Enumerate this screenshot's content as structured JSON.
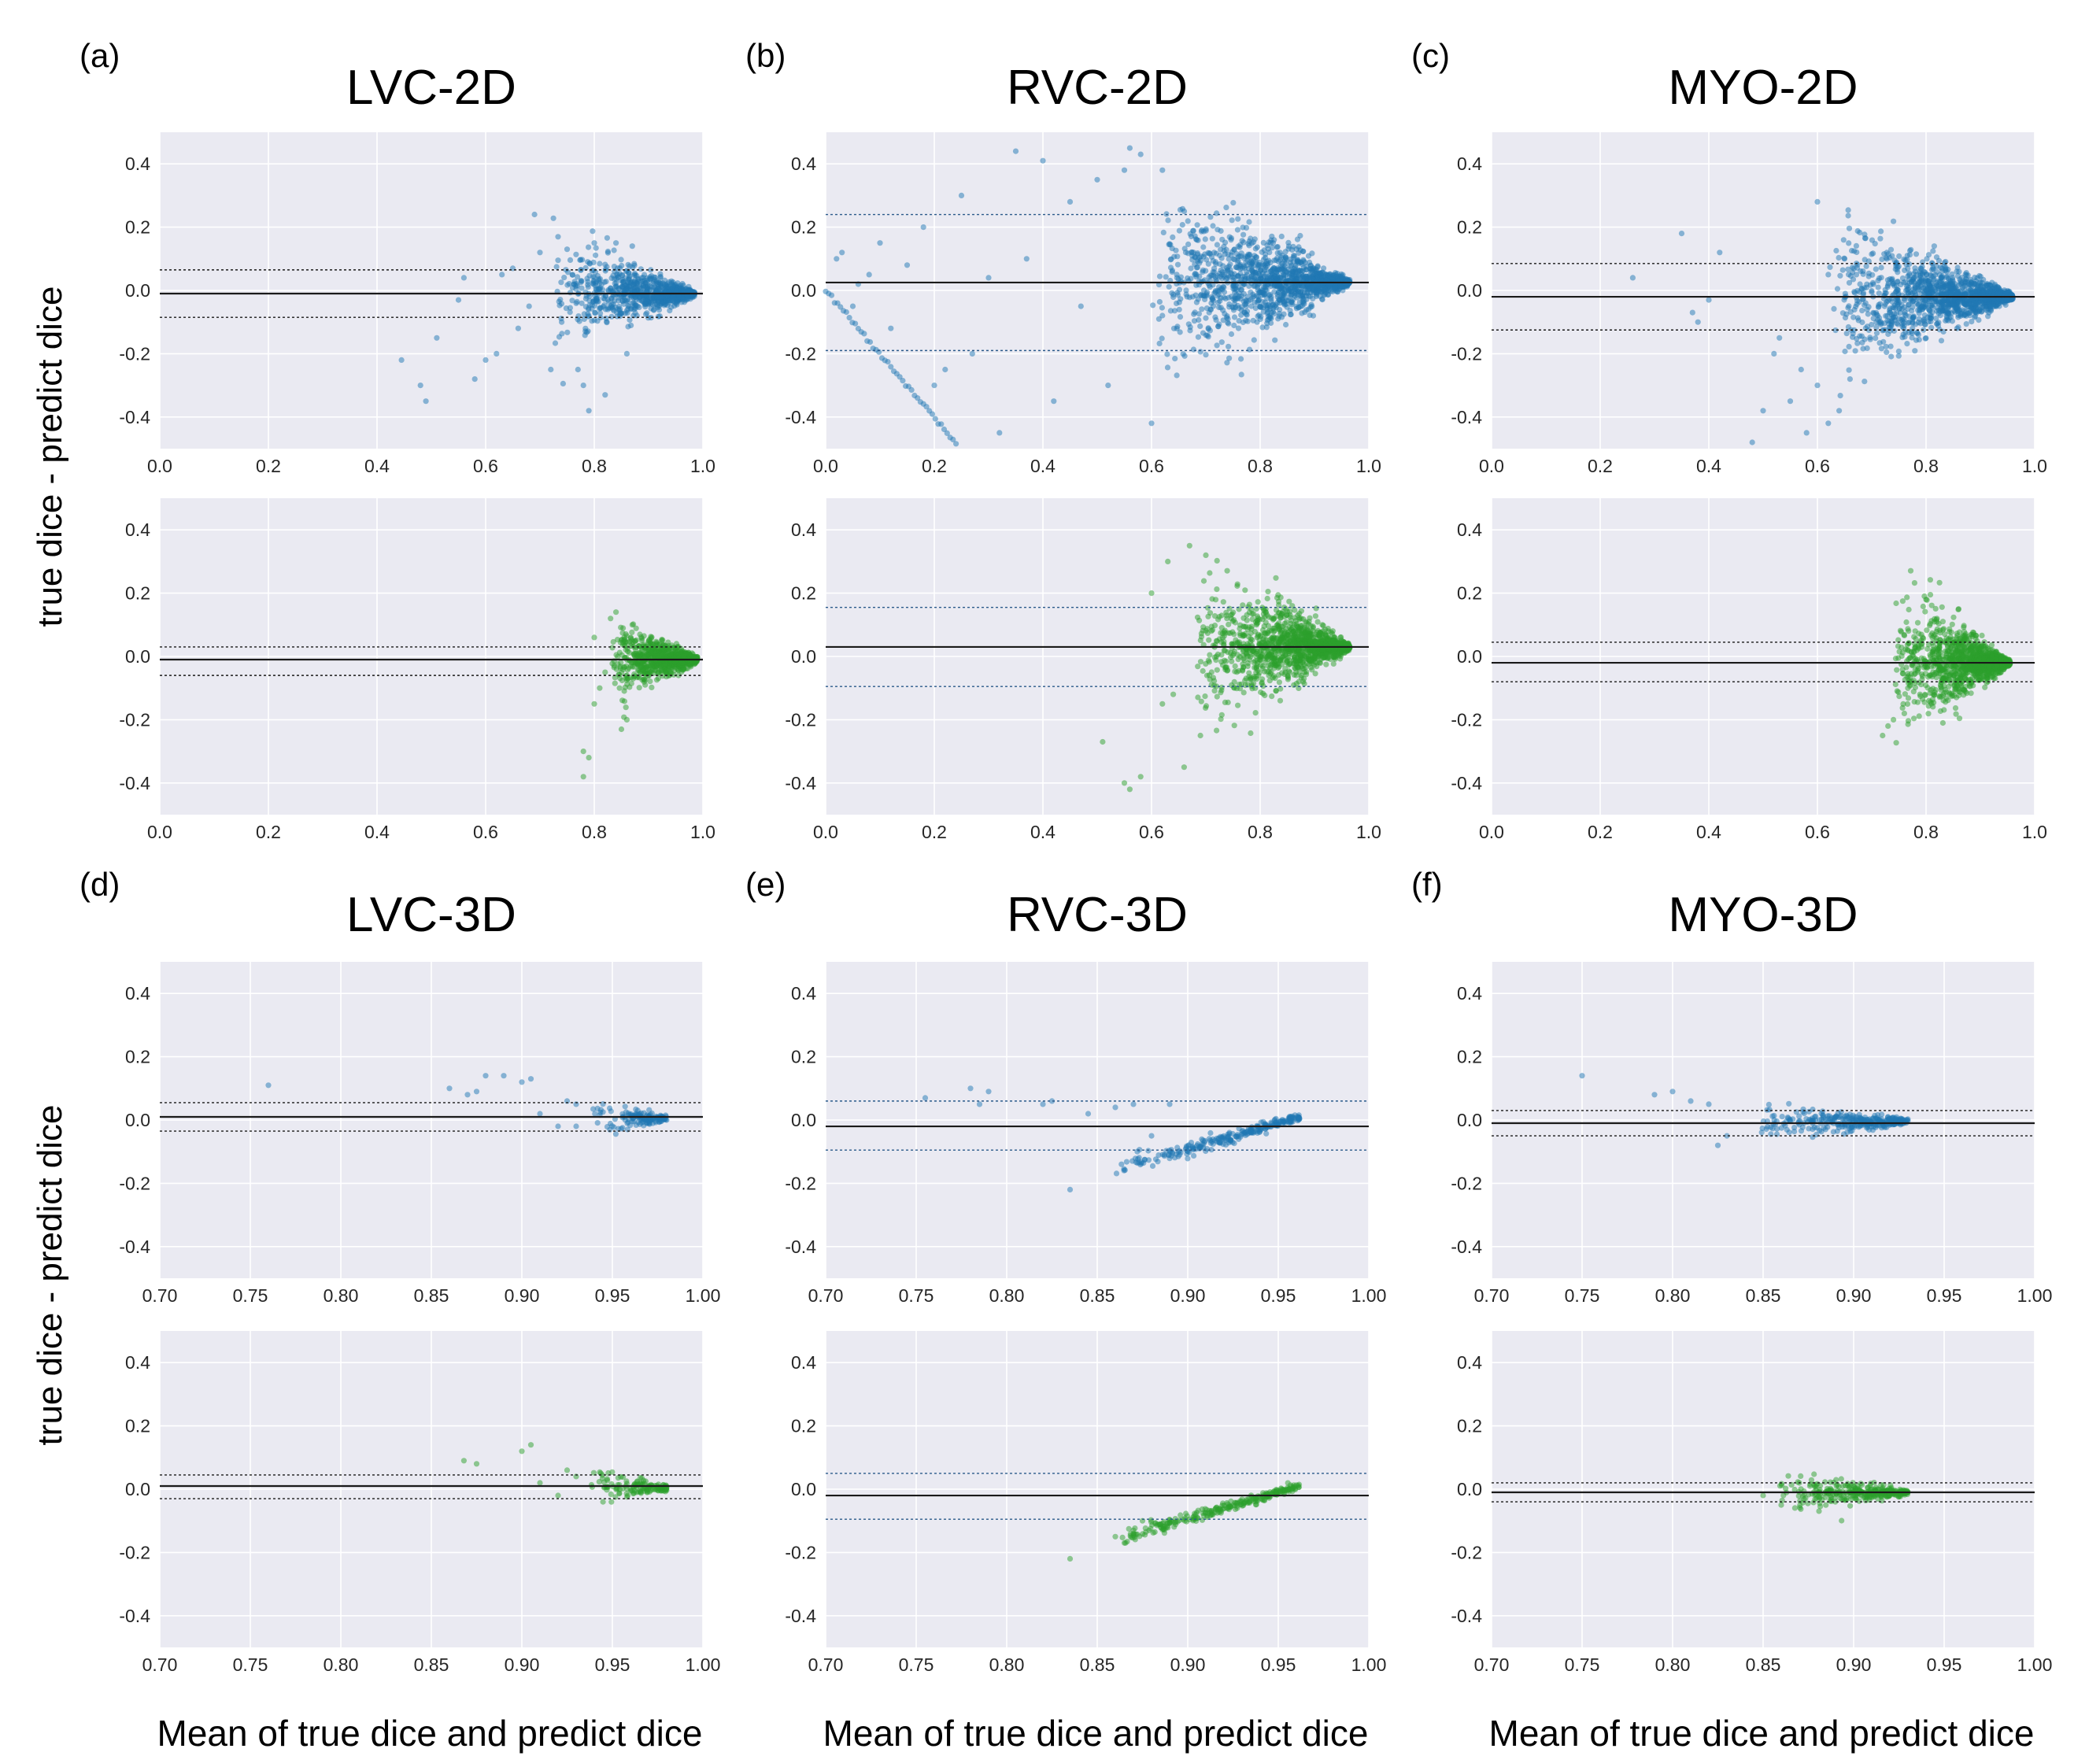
{
  "figure": {
    "y_axis_label": "true dice - predict dice",
    "x_axis_label": "Mean of true dice and predict dice"
  },
  "colors": {
    "blue": "#1f77b4",
    "green": "#2ca02c",
    "background": "#eaeaf2"
  },
  "chart_data": [
    {
      "id": "a",
      "panel_label": "(a)",
      "title": "LVC-2D",
      "type": "scatter",
      "xlim": [
        0.0,
        1.0
      ],
      "ylim": [
        -0.5,
        0.5
      ],
      "xticks": [
        "0.0",
        "0.2",
        "0.4",
        "0.6",
        "0.8",
        "1.0"
      ],
      "yticks": [
        "-0.4",
        "-0.2",
        "0.0",
        "0.2",
        "0.4"
      ],
      "subplots": [
        {
          "row": "top",
          "color": "blue",
          "mean": -0.01,
          "loa_upper": 0.065,
          "loa_lower": -0.085,
          "cluster": {
            "x_min": 0.72,
            "x_max": 0.985,
            "spread_at_min": 0.17,
            "center": -0.01,
            "n": 900
          },
          "outliers": [
            [
              0.445,
              -0.22
            ],
            [
              0.48,
              -0.3
            ],
            [
              0.49,
              -0.35
            ],
            [
              0.51,
              -0.15
            ],
            [
              0.55,
              -0.03
            ],
            [
              0.56,
              0.04
            ],
            [
              0.58,
              -0.28
            ],
            [
              0.6,
              -0.22
            ],
            [
              0.62,
              -0.2
            ],
            [
              0.63,
              0.05
            ],
            [
              0.65,
              0.07
            ],
            [
              0.66,
              -0.12
            ],
            [
              0.68,
              -0.05
            ],
            [
              0.69,
              0.24
            ],
            [
              0.7,
              0.12
            ],
            [
              0.72,
              -0.25
            ],
            [
              0.74,
              -0.1
            ],
            [
              0.75,
              0.13
            ],
            [
              0.77,
              -0.25
            ],
            [
              0.78,
              -0.3
            ],
            [
              0.79,
              -0.38
            ],
            [
              0.8,
              0.15
            ],
            [
              0.82,
              -0.33
            ],
            [
              0.84,
              0.15
            ],
            [
              0.86,
              -0.2
            ],
            [
              0.87,
              0.14
            ]
          ]
        },
        {
          "row": "bottom",
          "color": "green",
          "mean": -0.01,
          "loa_upper": 0.03,
          "loa_lower": -0.06,
          "cluster": {
            "x_min": 0.83,
            "x_max": 0.99,
            "spread_at_min": 0.12,
            "center": -0.01,
            "n": 900
          },
          "outliers": [
            [
              0.78,
              -0.3
            ],
            [
              0.78,
              -0.38
            ],
            [
              0.79,
              -0.32
            ],
            [
              0.8,
              -0.15
            ],
            [
              0.8,
              0.06
            ],
            [
              0.81,
              -0.1
            ],
            [
              0.82,
              -0.05
            ],
            [
              0.83,
              0.12
            ],
            [
              0.84,
              0.14
            ],
            [
              0.85,
              -0.23
            ],
            [
              0.86,
              -0.2
            ],
            [
              0.87,
              0.1
            ]
          ]
        }
      ]
    },
    {
      "id": "b",
      "panel_label": "(b)",
      "title": "RVC-2D",
      "type": "scatter",
      "xlim": [
        0.0,
        1.0
      ],
      "ylim": [
        -0.5,
        0.5
      ],
      "xticks": [
        "0.0",
        "0.2",
        "0.4",
        "0.6",
        "0.8",
        "1.0"
      ],
      "yticks": [
        "-0.4",
        "-0.2",
        "0.0",
        "0.2",
        "0.4"
      ],
      "subplots": [
        {
          "row": "top",
          "color": "blue",
          "mean": 0.025,
          "loa_upper": 0.24,
          "loa_lower": -0.19,
          "cluster": {
            "x_min": 0.6,
            "x_max": 0.965,
            "spread_at_min": 0.3,
            "center": 0.025,
            "n": 1400
          },
          "line_segment": {
            "x_from": 0.0,
            "x_to": 0.24,
            "slope": -2.0,
            "n": 45
          },
          "outliers": [
            [
              0.02,
              0.1
            ],
            [
              0.03,
              0.12
            ],
            [
              0.05,
              -0.05
            ],
            [
              0.06,
              0.02
            ],
            [
              0.08,
              0.05
            ],
            [
              0.1,
              0.15
            ],
            [
              0.12,
              -0.12
            ],
            [
              0.15,
              0.08
            ],
            [
              0.18,
              0.2
            ],
            [
              0.2,
              -0.3
            ],
            [
              0.22,
              -0.25
            ],
            [
              0.25,
              0.3
            ],
            [
              0.27,
              -0.2
            ],
            [
              0.3,
              0.04
            ],
            [
              0.32,
              -0.45
            ],
            [
              0.35,
              0.44
            ],
            [
              0.37,
              0.1
            ],
            [
              0.4,
              0.41
            ],
            [
              0.42,
              -0.35
            ],
            [
              0.45,
              0.28
            ],
            [
              0.47,
              -0.05
            ],
            [
              0.5,
              0.35
            ],
            [
              0.52,
              -0.3
            ],
            [
              0.55,
              0.38
            ],
            [
              0.56,
              0.45
            ],
            [
              0.58,
              0.43
            ],
            [
              0.6,
              -0.42
            ],
            [
              0.62,
              0.38
            ]
          ]
        },
        {
          "row": "bottom",
          "color": "green",
          "mean": 0.03,
          "loa_upper": 0.155,
          "loa_lower": -0.095,
          "cluster": {
            "x_min": 0.68,
            "x_max": 0.965,
            "spread_at_min": 0.26,
            "center": 0.03,
            "n": 1400
          },
          "outliers": [
            [
              0.51,
              -0.27
            ],
            [
              0.55,
              -0.4
            ],
            [
              0.56,
              -0.42
            ],
            [
              0.58,
              -0.38
            ],
            [
              0.6,
              0.2
            ],
            [
              0.62,
              -0.15
            ],
            [
              0.63,
              0.3
            ],
            [
              0.64,
              -0.12
            ],
            [
              0.66,
              -0.35
            ],
            [
              0.67,
              0.35
            ],
            [
              0.69,
              -0.25
            ],
            [
              0.7,
              0.32
            ]
          ]
        }
      ]
    },
    {
      "id": "c",
      "panel_label": "(c)",
      "title": "MYO-2D",
      "type": "scatter",
      "xlim": [
        0.0,
        1.0
      ],
      "ylim": [
        -0.5,
        0.5
      ],
      "xticks": [
        "0.0",
        "0.2",
        "0.4",
        "0.6",
        "0.8",
        "1.0"
      ],
      "yticks": [
        "-0.4",
        "-0.2",
        "0.0",
        "0.2",
        "0.4"
      ],
      "subplots": [
        {
          "row": "top",
          "color": "blue",
          "mean": -0.02,
          "loa_upper": 0.085,
          "loa_lower": -0.125,
          "cluster": {
            "x_min": 0.62,
            "x_max": 0.96,
            "spread_at_min": 0.25,
            "center": -0.02,
            "n": 1400
          },
          "outliers": [
            [
              0.26,
              0.04
            ],
            [
              0.35,
              0.18
            ],
            [
              0.37,
              -0.07
            ],
            [
              0.38,
              -0.1
            ],
            [
              0.4,
              -0.03
            ],
            [
              0.42,
              0.12
            ],
            [
              0.48,
              -0.48
            ],
            [
              0.5,
              -0.38
            ],
            [
              0.52,
              -0.2
            ],
            [
              0.53,
              -0.15
            ],
            [
              0.55,
              -0.35
            ],
            [
              0.57,
              -0.25
            ],
            [
              0.58,
              -0.45
            ],
            [
              0.6,
              -0.3
            ],
            [
              0.6,
              0.28
            ],
            [
              0.62,
              0.05
            ],
            [
              0.62,
              -0.42
            ],
            [
              0.64,
              -0.38
            ],
            [
              0.65,
              0.1
            ],
            [
              0.66,
              -0.28
            ]
          ]
        },
        {
          "row": "bottom",
          "color": "green",
          "mean": -0.02,
          "loa_upper": 0.045,
          "loa_lower": -0.08,
          "cluster": {
            "x_min": 0.74,
            "x_max": 0.955,
            "spread_at_min": 0.22,
            "center": -0.02,
            "n": 1300
          },
          "outliers": [
            [
              0.72,
              -0.25
            ],
            [
              0.73,
              -0.22
            ],
            [
              0.74,
              -0.2
            ],
            [
              0.76,
              -0.18
            ],
            [
              0.78,
              0.08
            ],
            [
              0.8,
              0.18
            ],
            [
              0.82,
              0.12
            ],
            [
              0.86,
              0.15
            ]
          ]
        }
      ]
    },
    {
      "id": "d",
      "panel_label": "(d)",
      "title": "LVC-3D",
      "type": "scatter",
      "xlim": [
        0.7,
        1.0
      ],
      "ylim": [
        -0.5,
        0.5
      ],
      "xticks": [
        "0.70",
        "0.75",
        "0.80",
        "0.85",
        "0.90",
        "0.95",
        "1.00"
      ],
      "yticks": [
        "-0.4",
        "-0.2",
        "0.0",
        "0.2",
        "0.4"
      ],
      "subplots": [
        {
          "row": "top",
          "color": "blue",
          "mean": 0.01,
          "loa_upper": 0.055,
          "loa_lower": -0.035,
          "cluster": {
            "x_min": 0.935,
            "x_max": 0.98,
            "spread_at_min": 0.05,
            "center": 0.005,
            "n": 140
          },
          "outliers": [
            [
              0.76,
              0.11
            ],
            [
              0.86,
              0.1
            ],
            [
              0.87,
              0.08
            ],
            [
              0.875,
              0.09
            ],
            [
              0.88,
              0.14
            ],
            [
              0.89,
              0.14
            ],
            [
              0.9,
              0.12
            ],
            [
              0.905,
              0.13
            ],
            [
              0.91,
              0.02
            ],
            [
              0.92,
              -0.02
            ],
            [
              0.925,
              0.06
            ],
            [
              0.93,
              0.05
            ],
            [
              0.93,
              -0.02
            ]
          ]
        },
        {
          "row": "bottom",
          "color": "green",
          "mean": 0.01,
          "loa_upper": 0.045,
          "loa_lower": -0.03,
          "cluster": {
            "x_min": 0.935,
            "x_max": 0.98,
            "spread_at_min": 0.05,
            "center": 0.005,
            "n": 140
          },
          "outliers": [
            [
              0.868,
              0.09
            ],
            [
              0.875,
              0.08
            ],
            [
              0.9,
              0.12
            ],
            [
              0.905,
              0.14
            ],
            [
              0.91,
              0.02
            ],
            [
              0.92,
              -0.02
            ],
            [
              0.925,
              0.06
            ],
            [
              0.93,
              0.04
            ]
          ]
        }
      ]
    },
    {
      "id": "e",
      "panel_label": "(e)",
      "title": "RVC-3D",
      "type": "scatter",
      "xlim": [
        0.7,
        1.0
      ],
      "ylim": [
        -0.5,
        0.5
      ],
      "xticks": [
        "0.70",
        "0.75",
        "0.80",
        "0.85",
        "0.90",
        "0.95",
        "1.00"
      ],
      "yticks": [
        "-0.4",
        "-0.2",
        "0.0",
        "0.2",
        "0.4"
      ],
      "subplots": [
        {
          "row": "top",
          "color": "blue",
          "mean": -0.02,
          "loa_upper": 0.06,
          "loa_lower": -0.095,
          "trend": {
            "x_from": 0.86,
            "x_to": 0.962,
            "y_from": -0.16,
            "y_to": 0.01,
            "spread": 0.05,
            "n": 260
          },
          "outliers": [
            [
              0.755,
              0.07
            ],
            [
              0.78,
              0.1
            ],
            [
              0.785,
              0.05
            ],
            [
              0.79,
              0.09
            ],
            [
              0.82,
              0.05
            ],
            [
              0.825,
              0.06
            ],
            [
              0.835,
              -0.22
            ],
            [
              0.845,
              0.02
            ],
            [
              0.86,
              0.04
            ],
            [
              0.87,
              0.05
            ],
            [
              0.88,
              -0.05
            ],
            [
              0.89,
              0.05
            ]
          ]
        },
        {
          "row": "bottom",
          "color": "green",
          "mean": -0.02,
          "loa_upper": 0.05,
          "loa_lower": -0.095,
          "trend": {
            "x_from": 0.86,
            "x_to": 0.962,
            "y_from": -0.16,
            "y_to": 0.01,
            "spread": 0.04,
            "n": 260
          },
          "outliers": [
            [
              0.835,
              -0.22
            ],
            [
              0.86,
              -0.15
            ],
            [
              0.865,
              -0.17
            ],
            [
              0.87,
              -0.13
            ],
            [
              0.875,
              -0.1
            ]
          ]
        }
      ]
    },
    {
      "id": "f",
      "panel_label": "(f)",
      "title": "MYO-3D",
      "type": "scatter",
      "xlim": [
        0.7,
        1.0
      ],
      "ylim": [
        -0.5,
        0.5
      ],
      "xticks": [
        "0.70",
        "0.75",
        "0.80",
        "0.85",
        "0.90",
        "0.95",
        "1.00"
      ],
      "yticks": [
        "-0.4",
        "-0.2",
        "0.0",
        "0.2",
        "0.4"
      ],
      "subplots": [
        {
          "row": "top",
          "color": "blue",
          "mean": -0.01,
          "loa_upper": 0.03,
          "loa_lower": -0.05,
          "cluster": {
            "x_min": 0.84,
            "x_max": 0.93,
            "spread_at_min": 0.06,
            "center": -0.005,
            "n": 320
          },
          "outliers": [
            [
              0.75,
              0.14
            ],
            [
              0.79,
              0.08
            ],
            [
              0.8,
              0.09
            ],
            [
              0.81,
              0.06
            ],
            [
              0.82,
              0.05
            ],
            [
              0.825,
              -0.08
            ],
            [
              0.83,
              -0.05
            ]
          ]
        },
        {
          "row": "bottom",
          "color": "green",
          "mean": -0.01,
          "loa_upper": 0.02,
          "loa_lower": -0.04,
          "cluster": {
            "x_min": 0.855,
            "x_max": 0.93,
            "spread_at_min": 0.06,
            "center": -0.01,
            "n": 320
          },
          "outliers": [
            [
              0.85,
              -0.02
            ],
            [
              0.86,
              -0.05
            ],
            [
              0.87,
              0.02
            ]
          ]
        }
      ]
    }
  ]
}
